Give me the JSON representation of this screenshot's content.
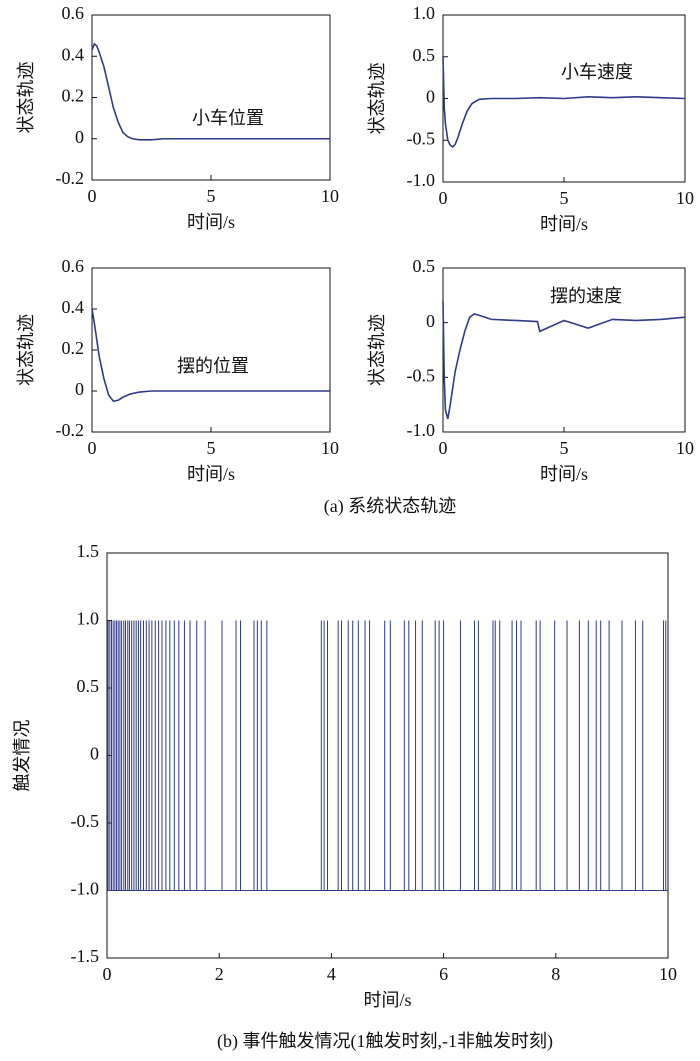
{
  "chart_data": [
    {
      "type": "line",
      "annotation": "小车位置",
      "xlabel": "时间/s",
      "ylabel": "状态轨迹",
      "color": "#2e3a8c",
      "x": [
        0,
        0.1,
        0.2,
        0.3,
        0.5,
        0.7,
        0.9,
        1.1,
        1.3,
        1.5,
        1.7,
        2,
        2.5,
        3,
        4,
        5,
        6,
        7,
        8,
        9,
        10
      ],
      "values": [
        0.43,
        0.46,
        0.45,
        0.42,
        0.35,
        0.25,
        0.15,
        0.08,
        0.03,
        0.01,
        0,
        -0.005,
        -0.005,
        0,
        0,
        0,
        0,
        0,
        0,
        0,
        0
      ],
      "xlim": [
        0,
        10
      ],
      "xticks": [
        0,
        5,
        10
      ],
      "ylim": [
        -0.2,
        0.6
      ],
      "yticks": [
        0.6,
        0.4,
        0.2,
        0,
        -0.2
      ]
    },
    {
      "type": "line",
      "annotation": "小车速度",
      "xlabel": "时间/s",
      "ylabel": "状态轨迹",
      "color": "#2e3a8c",
      "x": [
        0,
        0.05,
        0.1,
        0.2,
        0.3,
        0.4,
        0.5,
        0.6,
        0.8,
        1.0,
        1.2,
        1.5,
        2,
        3,
        4,
        5,
        6,
        7,
        8,
        9,
        10
      ],
      "values": [
        0.5,
        -0.1,
        -0.3,
        -0.5,
        -0.56,
        -0.58,
        -0.55,
        -0.48,
        -0.3,
        -0.15,
        -0.06,
        -0.01,
        0,
        0,
        0.01,
        0,
        0.02,
        0.01,
        0.02,
        0.01,
        0
      ],
      "xlim": [
        0,
        10
      ],
      "xticks": [
        0,
        5,
        10
      ],
      "ylim": [
        -1,
        1
      ],
      "yticks": [
        {
          "value": 1,
          "label": "1.0"
        },
        0.5,
        0,
        -0.5,
        {
          "value": -1,
          "label": "-1.0"
        }
      ]
    },
    {
      "type": "line",
      "annotation": "摆的位置",
      "xlabel": "时间/s",
      "ylabel": "状态轨迹",
      "color": "#2e3a8c",
      "x": [
        0,
        0.1,
        0.2,
        0.3,
        0.5,
        0.7,
        0.9,
        1.1,
        1.3,
        1.6,
        2,
        2.5,
        3,
        4,
        5,
        6,
        7,
        8,
        9,
        10
      ],
      "values": [
        0.4,
        0.33,
        0.25,
        0.17,
        0.06,
        -0.02,
        -0.05,
        -0.045,
        -0.03,
        -0.015,
        -0.005,
        0,
        0,
        0,
        0,
        0,
        0,
        0,
        0,
        0
      ],
      "xlim": [
        0,
        10
      ],
      "xticks": [
        0,
        5,
        10
      ],
      "ylim": [
        -0.2,
        0.6
      ],
      "yticks": [
        0.6,
        0.4,
        0.2,
        0,
        -0.2
      ]
    },
    {
      "type": "line",
      "annotation": "摆的速度",
      "xlabel": "时间/s",
      "ylabel": "状态轨迹",
      "color": "#2e3a8c",
      "x": [
        0,
        0.05,
        0.1,
        0.2,
        0.3,
        0.4,
        0.5,
        0.7,
        0.9,
        1.1,
        1.3,
        1.6,
        2,
        3,
        3.9,
        4,
        5,
        6,
        7,
        8,
        9,
        10
      ],
      "values": [
        0.2,
        -0.5,
        -0.8,
        -0.88,
        -0.75,
        -0.6,
        -0.45,
        -0.25,
        -0.08,
        0.05,
        0.08,
        0.06,
        0.03,
        0.02,
        0.01,
        -0.08,
        0.02,
        -0.05,
        0.03,
        0.02,
        0.03,
        0.05
      ],
      "xlim": [
        0,
        10
      ],
      "xticks": [
        0,
        5,
        10
      ],
      "ylim": [
        -1,
        0.5
      ],
      "yticks": [
        0.5,
        0,
        -0.5,
        {
          "value": -1,
          "label": "-1.0"
        }
      ]
    },
    {
      "type": "stem",
      "xlabel": "时间/s",
      "ylabel": "触发情况",
      "color": "#2e3a8c",
      "baseline": -1,
      "x": [
        0.02,
        0.05,
        0.08,
        0.11,
        0.14,
        0.17,
        0.2,
        0.23,
        0.26,
        0.3,
        0.33,
        0.37,
        0.4,
        0.44,
        0.48,
        0.52,
        0.56,
        0.6,
        0.65,
        0.7,
        0.75,
        0.8,
        0.86,
        0.92,
        0.98,
        1.05,
        1.12,
        1.2,
        1.28,
        1.38,
        1.48,
        1.6,
        1.75,
        2.05,
        2.3,
        2.38,
        2.62,
        2.68,
        2.75,
        2.85,
        3.82,
        3.87,
        3.93,
        4.12,
        4.18,
        4.3,
        4.38,
        4.48,
        4.6,
        4.68,
        4.95,
        5.05,
        5.3,
        5.38,
        5.5,
        5.62,
        5.85,
        5.92,
        6.0,
        6.3,
        6.55,
        6.62,
        6.88,
        6.92,
        7.0,
        7.22,
        7.3,
        7.38,
        7.65,
        7.72,
        7.98,
        8.2,
        8.42,
        8.58,
        8.72,
        8.8,
        8.95,
        9.18,
        9.42,
        9.55,
        9.92,
        9.96
      ],
      "values": [
        1,
        1,
        1,
        1,
        1,
        1,
        1,
        1,
        1,
        1,
        1,
        1,
        1,
        1,
        1,
        1,
        1,
        1,
        1,
        1,
        1,
        1,
        1,
        1,
        1,
        1,
        1,
        1,
        1,
        1,
        1,
        1,
        1,
        1,
        1,
        1,
        1,
        1,
        1,
        1,
        1,
        1,
        1,
        1,
        1,
        1,
        1,
        1,
        1,
        1,
        1,
        1,
        1,
        1,
        1,
        1,
        1,
        1,
        1,
        1,
        1,
        1,
        1,
        1,
        1,
        1,
        1,
        1,
        1,
        1,
        1,
        1,
        1,
        1,
        1,
        1,
        1,
        1,
        1,
        1,
        1,
        1
      ],
      "xlim": [
        0,
        10
      ],
      "xticks": [
        0,
        2,
        4,
        6,
        8,
        10
      ],
      "ylim": [
        -1.5,
        1.5
      ],
      "yticks": [
        1.5,
        {
          "value": 1,
          "label": "1.0"
        },
        0.5,
        0,
        -0.5,
        {
          "value": -1,
          "label": "-1.0"
        },
        -1.5
      ]
    }
  ],
  "captions": [
    "(a) 系统状态轨迹",
    "(b) 事件触发情况(1触发时刻,-1非触发时刻)"
  ]
}
